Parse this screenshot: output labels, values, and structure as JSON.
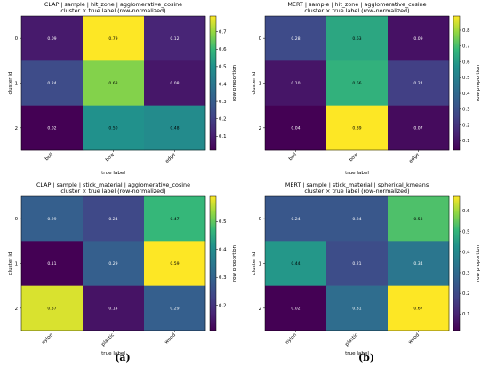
{
  "chart_data": [
    {
      "type": "heatmap",
      "title": "CLAP | sample | hit_zone | agglomerative_cosine",
      "subtitle": "cluster × true label (row-normalized)",
      "xlabel": "true label",
      "ylabel": "cluster id",
      "x_categories": [
        "bell",
        "bow",
        "edge"
      ],
      "y_categories": [
        "0",
        "1",
        "2"
      ],
      "values": [
        [
          0.09,
          0.79,
          0.12
        ],
        [
          0.24,
          0.68,
          0.08
        ],
        [
          0.02,
          0.5,
          0.48
        ]
      ],
      "colorbar_label": "row proportion",
      "colorbar_range": [
        0.02,
        0.79
      ],
      "colorbar_ticks": [
        0.1,
        0.2,
        0.3,
        0.4,
        0.5,
        0.6,
        0.7
      ],
      "colormap": "viridis"
    },
    {
      "type": "heatmap",
      "title": "MERT | sample | hit_zone | agglomerative_cosine",
      "subtitle": "cluster × true label (row-normalized)",
      "xlabel": "true label",
      "ylabel": "cluster id",
      "x_categories": [
        "bell",
        "bow",
        "edge"
      ],
      "y_categories": [
        "0",
        "1",
        "2"
      ],
      "values": [
        [
          0.28,
          0.63,
          0.09
        ],
        [
          0.1,
          0.66,
          0.24
        ],
        [
          0.04,
          0.89,
          0.07
        ]
      ],
      "colorbar_label": "row proportion",
      "colorbar_range": [
        0.04,
        0.89
      ],
      "colorbar_ticks": [
        0.1,
        0.2,
        0.3,
        0.4,
        0.5,
        0.6,
        0.7,
        0.8
      ],
      "colormap": "viridis"
    },
    {
      "type": "heatmap",
      "title": "CLAP | sample | stick_material | agglomerative_cosine",
      "subtitle": "cluster × true label (row-normalized)",
      "xlabel": "true label",
      "ylabel": "cluster id",
      "x_categories": [
        "nylon",
        "plastic",
        "wood"
      ],
      "y_categories": [
        "0",
        "1",
        "2"
      ],
      "values": [
        [
          0.29,
          0.24,
          0.47
        ],
        [
          0.11,
          0.29,
          0.59
        ],
        [
          0.57,
          0.14,
          0.29
        ]
      ],
      "colorbar_label": "row proportion",
      "colorbar_range": [
        0.11,
        0.59
      ],
      "colorbar_ticks": [
        0.2,
        0.3,
        0.4,
        0.5
      ],
      "colormap": "viridis"
    },
    {
      "type": "heatmap",
      "title": "MERT | sample | stick_material | spherical_kmeans",
      "subtitle": "cluster × true label (row-normalized)",
      "xlabel": "true label",
      "ylabel": "cluster id",
      "x_categories": [
        "nylon",
        "plastic",
        "wood"
      ],
      "y_categories": [
        "0",
        "1",
        "2"
      ],
      "values": [
        [
          0.24,
          0.24,
          0.53
        ],
        [
          0.44,
          0.21,
          0.34
        ],
        [
          0.02,
          0.31,
          0.67
        ]
      ],
      "colorbar_label": "row proportion",
      "colorbar_range": [
        0.02,
        0.67
      ],
      "colorbar_ticks": [
        0.1,
        0.2,
        0.3,
        0.4,
        0.5,
        0.6
      ],
      "colormap": "viridis"
    }
  ],
  "captions": [
    "(a)",
    "(b)"
  ]
}
